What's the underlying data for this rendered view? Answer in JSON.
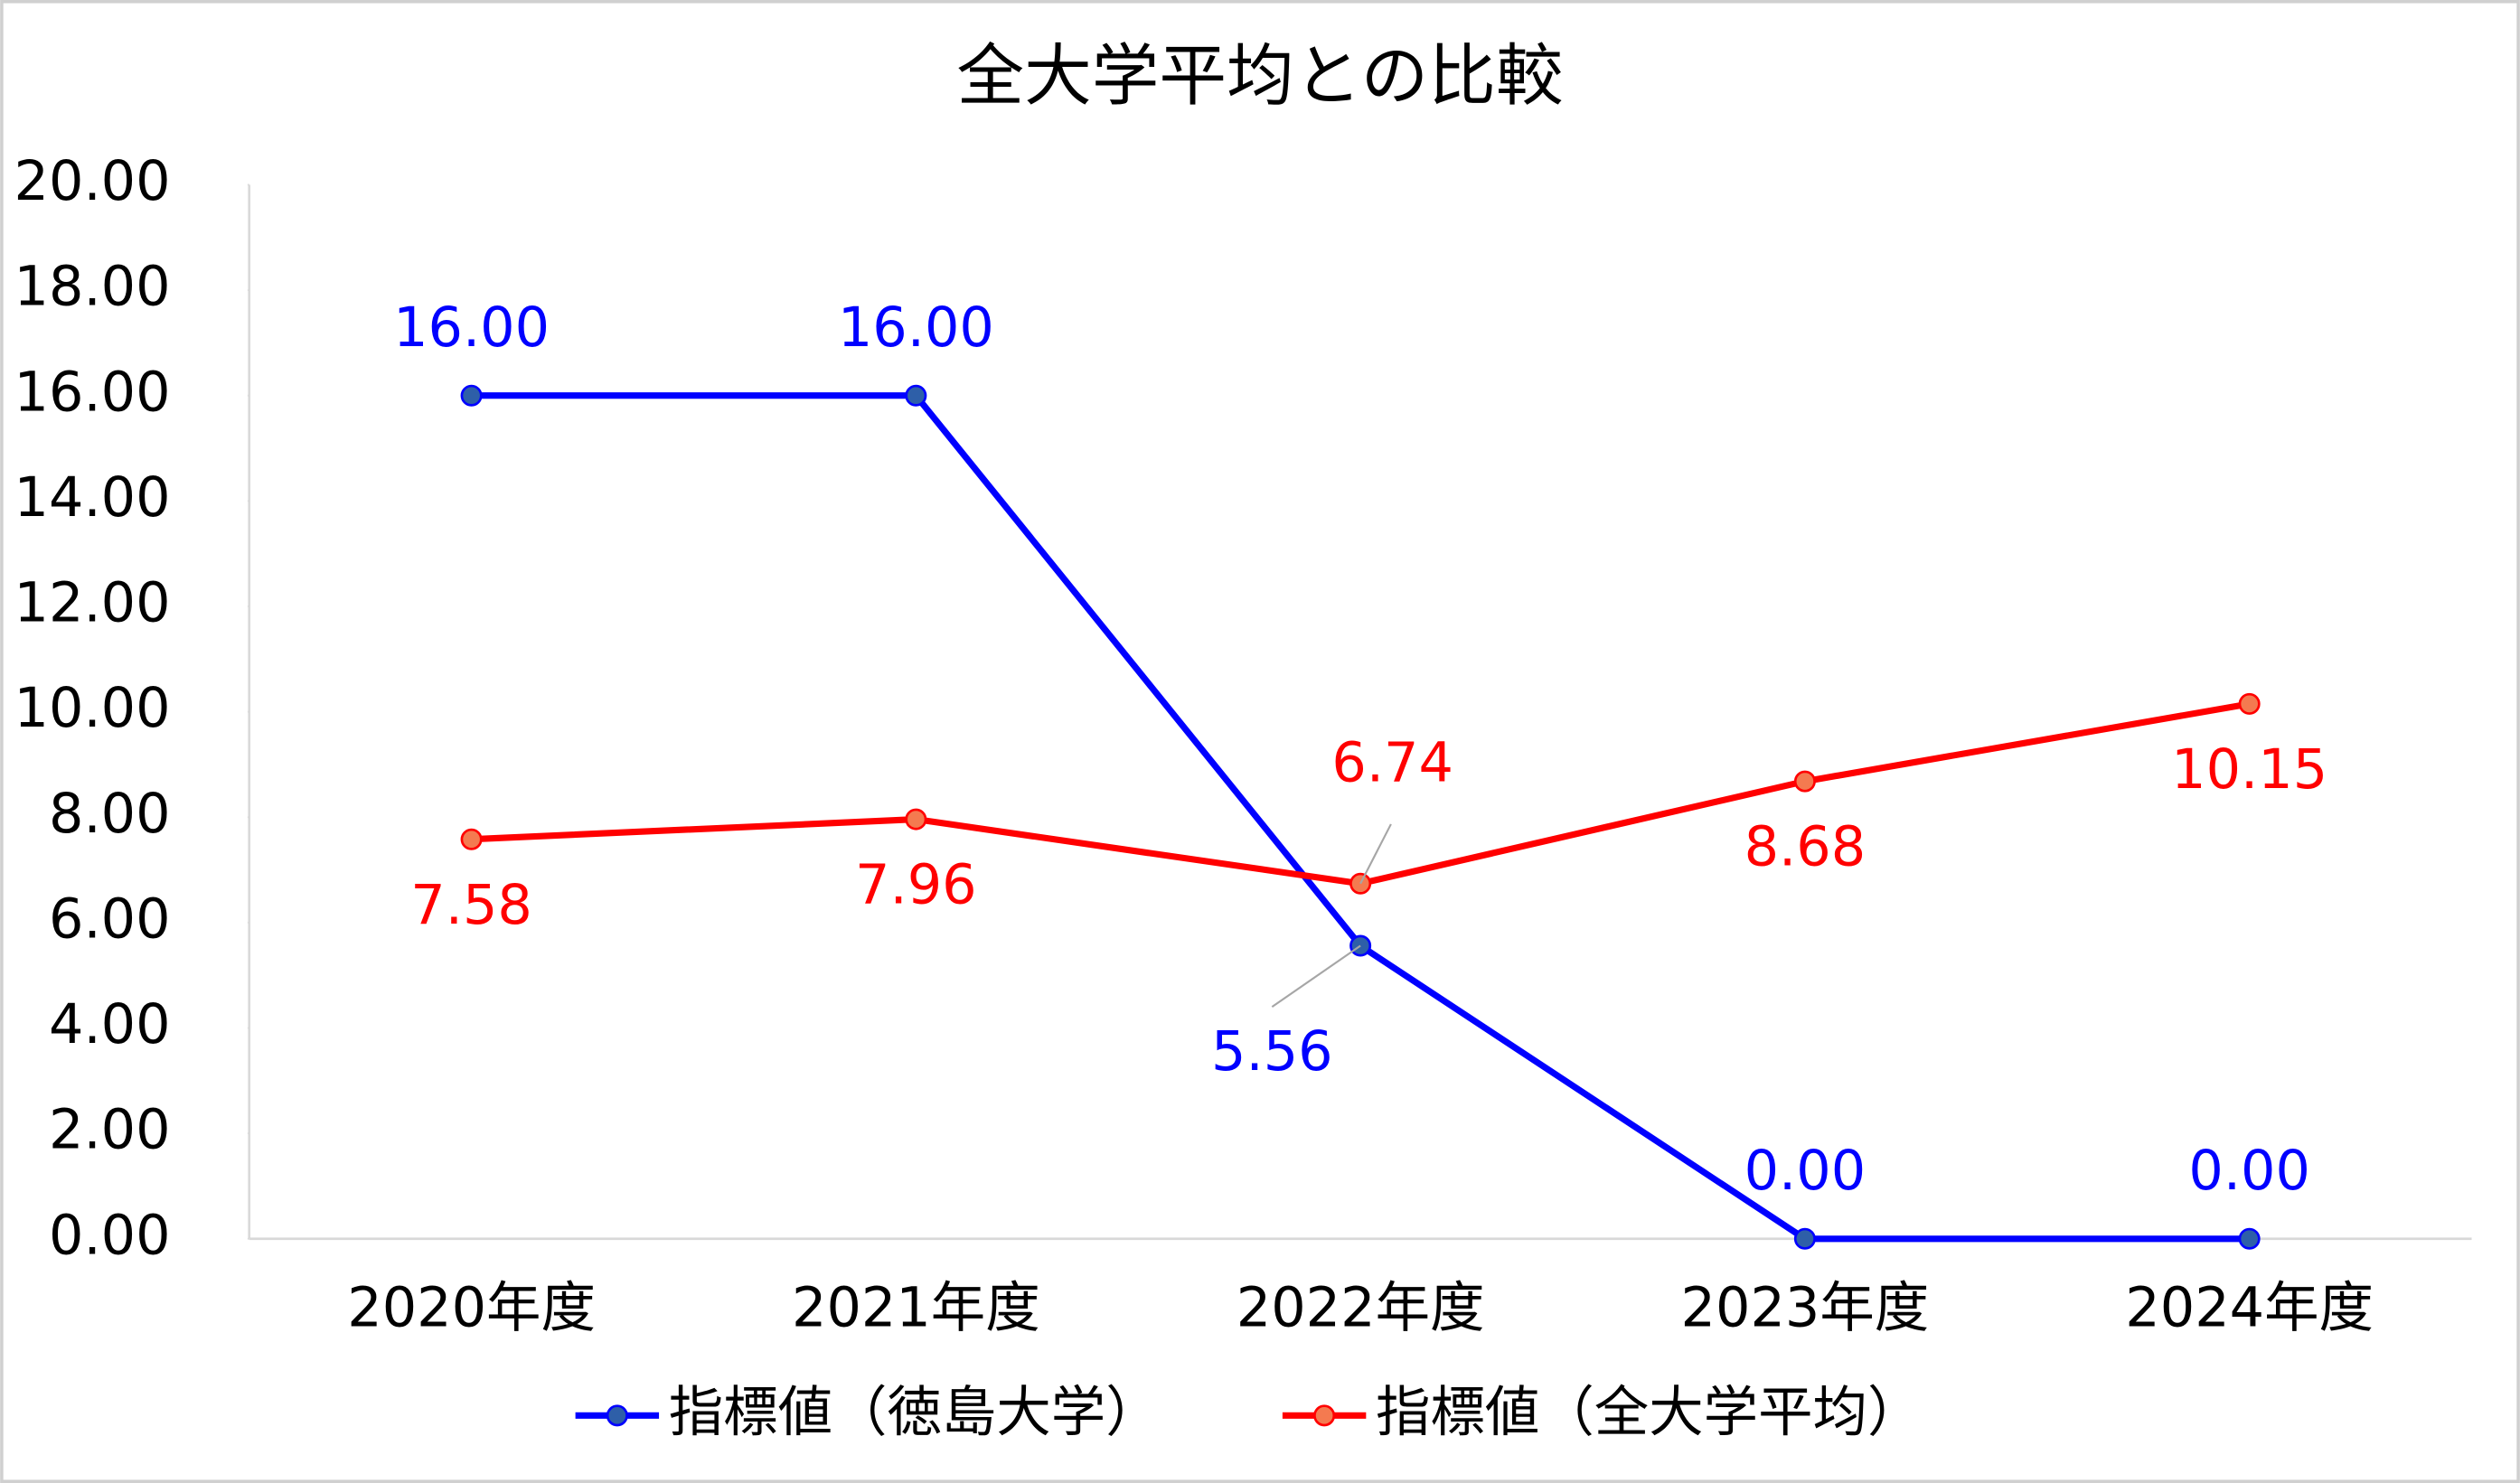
{
  "chart_data": {
    "type": "line",
    "title": "全大学平均との比較",
    "categories": [
      "2020年度",
      "2021年度",
      "2022年度",
      "2023年度",
      "2024年度"
    ],
    "series": [
      {
        "name": "指標値（徳島大学）",
        "color": "#0000ff",
        "values": [
          16,
          16,
          5.56,
          0,
          0
        ],
        "value_labels": [
          "16.00",
          "16.00",
          "5.56",
          "0.00",
          "0.00"
        ]
      },
      {
        "name": "指標値（全大学平均）",
        "color": "#ff0000",
        "values": [
          7.58,
          7.96,
          6.74,
          8.68,
          10.15
        ]
      }
    ],
    "ylim": [
      0,
      20
    ],
    "yticks": [
      {
        "value": 0,
        "label": "0.00"
      },
      {
        "value": 2,
        "label": "2.00"
      },
      {
        "value": 4,
        "label": "4.00"
      },
      {
        "value": 6,
        "label": "6.00"
      },
      {
        "value": 8,
        "label": "8.00"
      },
      {
        "value": 10,
        "label": "10.00"
      },
      {
        "value": 12,
        "label": "12.00"
      },
      {
        "value": 14,
        "label": "14.00"
      },
      {
        "value": 16,
        "label": "16.00"
      },
      {
        "value": 18,
        "label": "18.00"
      },
      {
        "value": 20,
        "label": "20.00"
      }
    ],
    "legend": "bottom"
  }
}
